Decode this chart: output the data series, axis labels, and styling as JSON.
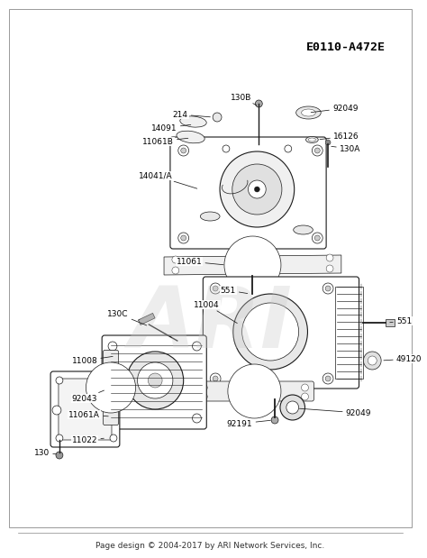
{
  "background_color": "#ffffff",
  "diagram_id": "E0110-A472E",
  "footer_text": "Page design © 2004-2017 by ARI Network Services, Inc.",
  "watermark_text": "ARI",
  "watermark_color": "#cccccc",
  "border_color": "#000000",
  "line_color": "#1a1a1a",
  "text_color": "#000000",
  "label_fontsize": 6.5,
  "diagram_id_fontsize": 9.5,
  "footer_fontsize": 6.5
}
